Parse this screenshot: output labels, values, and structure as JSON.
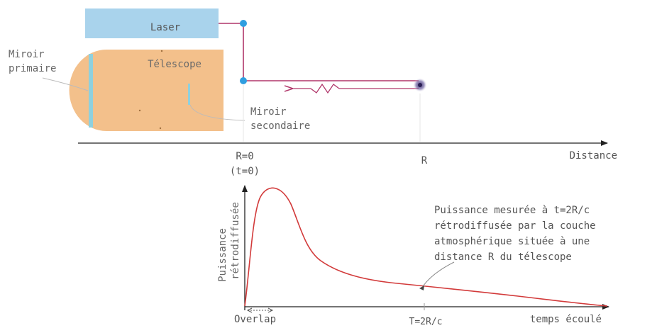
{
  "labels": {
    "laser": "Laser",
    "telescope": "Télescope",
    "primary_mirror_line1": "Miroir",
    "primary_mirror_line2": "primaire",
    "secondary_mirror_line1": "Miroir",
    "secondary_mirror_line2": "secondaire",
    "r0": "R=0",
    "t0": "(t=0)",
    "r": "R",
    "distance_axis": "Distance",
    "y_axis_line1": "Puissance",
    "y_axis_line2": "rétrodiffusée",
    "overlap": "Overlap",
    "t_2r_c": "T=2R/c",
    "time_axis": "temps écoulé",
    "annotation": [
      "Puissance mesurée à t=2R/c",
      "rétrodiffusée par la couche",
      "atmosphérique située à une",
      "distance R du télescope"
    ]
  },
  "colors": {
    "laser_box": "#a9d3ec",
    "telescope_body": "#f3c08b",
    "primary_mirror": "#8fd0dd",
    "beam": "#b0366a",
    "axis": "#222222",
    "curve": "#d23a3a",
    "node": "#2f9ee0"
  }
}
